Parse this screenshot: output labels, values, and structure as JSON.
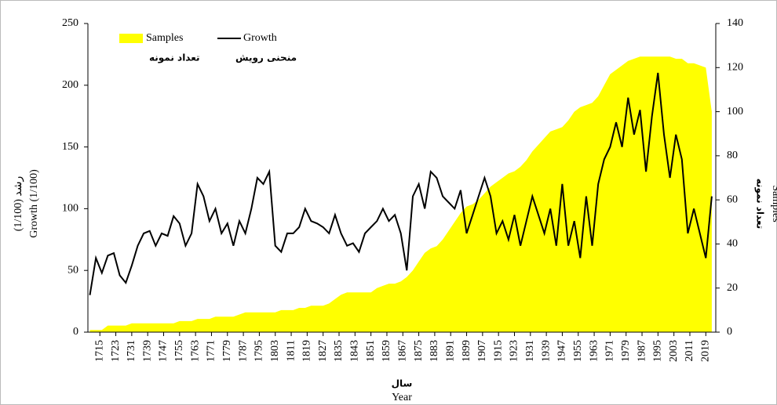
{
  "chart_data": {
    "type": "area-line",
    "legend_labels_fa": [
      "تعداد نمونه",
      "منحنی رویش"
    ],
    "ylabel_lines": [
      "رشد (1/100)",
      "Growth (1/100)"
    ],
    "y2label_lines": [
      "تعداد نمونه",
      "Samples"
    ],
    "xlabel_lines": [
      "سال",
      "Year"
    ],
    "x": [
      1710,
      1713,
      1716,
      1719,
      1722,
      1725,
      1728,
      1731,
      1734,
      1737,
      1740,
      1743,
      1746,
      1749,
      1752,
      1755,
      1758,
      1761,
      1764,
      1767,
      1770,
      1773,
      1776,
      1779,
      1782,
      1785,
      1788,
      1791,
      1794,
      1797,
      1800,
      1803,
      1806,
      1809,
      1812,
      1815,
      1818,
      1821,
      1824,
      1827,
      1830,
      1833,
      1836,
      1839,
      1842,
      1845,
      1848,
      1851,
      1854,
      1857,
      1860,
      1863,
      1866,
      1869,
      1872,
      1875,
      1878,
      1881,
      1884,
      1887,
      1890,
      1893,
      1896,
      1899,
      1902,
      1905,
      1908,
      1911,
      1914,
      1917,
      1920,
      1923,
      1926,
      1929,
      1932,
      1935,
      1938,
      1941,
      1944,
      1947,
      1950,
      1953,
      1956,
      1959,
      1962,
      1965,
      1968,
      1971,
      1974,
      1977,
      1980,
      1983,
      1986,
      1989,
      1992,
      1995,
      1998,
      2001,
      2004,
      2007,
      2010,
      2013,
      2016,
      2019,
      2022
    ],
    "series": [
      {
        "name": "Samples",
        "color": "#ffff00",
        "axis": "y2",
        "values": [
          1,
          1,
          1,
          3,
          3,
          3,
          3,
          4,
          4,
          4,
          4,
          4,
          4,
          4,
          4,
          5,
          5,
          5,
          6,
          6,
          6,
          7,
          7,
          7,
          7,
          8,
          9,
          9,
          9,
          9,
          9,
          9,
          10,
          10,
          10,
          11,
          11,
          12,
          12,
          12,
          13,
          15,
          17,
          18,
          18,
          18,
          18,
          18,
          20,
          21,
          22,
          22,
          23,
          25,
          28,
          32,
          36,
          38,
          39,
          42,
          46,
          50,
          54,
          57,
          58,
          60,
          63,
          66,
          68,
          70,
          72,
          73,
          75,
          78,
          82,
          85,
          88,
          91,
          92,
          93,
          96,
          100,
          102,
          103,
          104,
          107,
          112,
          117,
          119,
          121,
          123,
          124,
          125,
          125,
          125,
          125,
          125,
          125,
          124,
          124,
          122,
          122,
          121,
          120,
          100
        ]
      },
      {
        "name": "Growth",
        "color": "#000000",
        "values": [
          30,
          60,
          48,
          62,
          64,
          46,
          40,
          54,
          70,
          80,
          82,
          70,
          80,
          78,
          94,
          88,
          70,
          80,
          120,
          110,
          90,
          100,
          80,
          88,
          70,
          90,
          80,
          100,
          125,
          120,
          130,
          70,
          65,
          80,
          80,
          85,
          100,
          90,
          88,
          85,
          80,
          95,
          80,
          70,
          72,
          65,
          80,
          85,
          90,
          100,
          90,
          95,
          80,
          50,
          110,
          120,
          100,
          130,
          125,
          110,
          105,
          100,
          115,
          80,
          95,
          110,
          125,
          110,
          80,
          90,
          75,
          95,
          70,
          90,
          110,
          95,
          80,
          100,
          70,
          120,
          70,
          90,
          60,
          110,
          70,
          120,
          140,
          150,
          170,
          150,
          190,
          160,
          180,
          130,
          175,
          210,
          160,
          125,
          160,
          140,
          80,
          100,
          80,
          60,
          110
        ]
      }
    ],
    "xlim": [
      1709,
      2024
    ],
    "xticks": [
      1715,
      1723,
      1731,
      1739,
      1747,
      1755,
      1763,
      1771,
      1779,
      1787,
      1795,
      1803,
      1811,
      1819,
      1827,
      1835,
      1843,
      1851,
      1859,
      1867,
      1875,
      1883,
      1891,
      1899,
      1907,
      1915,
      1923,
      1931,
      1939,
      1947,
      1955,
      1963,
      1971,
      1979,
      1987,
      1995,
      2003,
      2011,
      2019
    ],
    "ylim": [
      0,
      250
    ],
    "yticks": [
      0,
      50,
      100,
      150,
      200,
      250
    ],
    "y2lim": [
      0,
      140
    ],
    "y2ticks": [
      0,
      20,
      40,
      60,
      80,
      100,
      120,
      140
    ]
  }
}
